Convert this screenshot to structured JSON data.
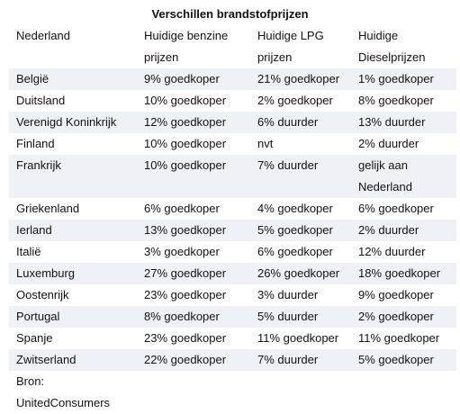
{
  "title": "Verschillen brandstofprijzen",
  "header": {
    "country": "Nederland",
    "benzine": "Huidige benzine prijzen",
    "lpg": "Huidige LPG prijzen",
    "diesel": "Huidige Dieselprijzen"
  },
  "rows": [
    {
      "country": "België",
      "benzine": "9% goedkoper",
      "lpg": "21% goedkoper",
      "diesel": "1% goedkoper"
    },
    {
      "country": "Duitsland",
      "benzine": "10% goedkoper",
      "lpg": "2% goedkoper",
      "diesel": "8% goedkoper"
    },
    {
      "country": "Verenigd Koninkrijk",
      "benzine": "12% goedkoper",
      "lpg": "6% duurder",
      "diesel": "13% duurder"
    },
    {
      "country": "Finland",
      "benzine": "10% goedkoper",
      "lpg": "nvt",
      "diesel": "2% duurder"
    },
    {
      "country": "Frankrijk",
      "benzine": "10% goedkoper",
      "lpg": "7% duurder",
      "diesel": "gelijk aan Nederland"
    },
    {
      "country": "Griekenland",
      "benzine": "6% goedkoper",
      "lpg": "4% goedkoper",
      "diesel": "6% goedkoper"
    },
    {
      "country": "Ierland",
      "benzine": "13% goedkoper",
      "lpg": "5% goedkoper",
      "diesel": "2% duurder"
    },
    {
      "country": "Italië",
      "benzine": "3% goedkoper",
      "lpg": "6% goedkoper",
      "diesel": "12% duurder"
    },
    {
      "country": "Luxemburg",
      "benzine": "27% goedkoper",
      "lpg": "26% goedkoper",
      "diesel": "18% goedkoper"
    },
    {
      "country": "Oostenrijk",
      "benzine": "23% goedkoper",
      "lpg": "3% duurder",
      "diesel": "9% goedkoper"
    },
    {
      "country": "Portugal",
      "benzine": "8% goedkoper",
      "lpg": "5% duurder",
      "diesel": "2% goedkoper"
    },
    {
      "country": "Spanje",
      "benzine": "23% goedkoper",
      "lpg": "11% goedkoper",
      "diesel": "11% goedkoper"
    },
    {
      "country": "Zwitserland",
      "benzine": "22% goedkoper",
      "lpg": "7% duurder",
      "diesel": "5% goedkoper"
    }
  ],
  "source": {
    "label": "Bron:",
    "name": "UnitedConsumers"
  },
  "colors": {
    "row_shade": "#eef2f7",
    "text": "#111111"
  }
}
